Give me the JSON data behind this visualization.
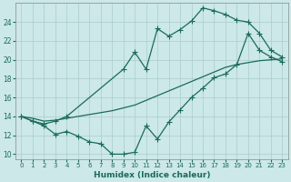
{
  "xlabel": "Humidex (Indice chaleur)",
  "ylabel": "",
  "bg_color": "#cce8e8",
  "grid_color": "#aacccc",
  "line_color": "#1a6b5a",
  "xlim": [
    -0.5,
    23.5
  ],
  "ylim": [
    9.5,
    26.0
  ],
  "yticks": [
    10,
    12,
    14,
    16,
    18,
    20,
    22,
    24
  ],
  "xticks": [
    0,
    1,
    2,
    3,
    4,
    5,
    6,
    7,
    8,
    9,
    10,
    11,
    12,
    13,
    14,
    15,
    16,
    17,
    18,
    19,
    20,
    21,
    22,
    23
  ],
  "line_top_x": [
    0,
    1,
    2,
    3,
    4,
    9,
    10,
    11,
    12,
    13,
    14,
    15,
    16,
    17,
    18,
    19,
    20,
    21,
    22,
    23
  ],
  "line_top_y": [
    14.0,
    13.5,
    13.2,
    13.5,
    14.0,
    19.0,
    20.8,
    19.0,
    23.3,
    22.5,
    23.2,
    24.1,
    25.5,
    25.2,
    24.8,
    24.2,
    24.0,
    22.8,
    21.0,
    20.3
  ],
  "line_mid_x": [
    0,
    1,
    2,
    3,
    4,
    5,
    6,
    7,
    8,
    9,
    10,
    11,
    12,
    13,
    14,
    15,
    16,
    17,
    18,
    19,
    20,
    21,
    22,
    23
  ],
  "line_mid_y": [
    14.0,
    13.8,
    13.5,
    13.6,
    13.8,
    14.0,
    14.2,
    14.4,
    14.6,
    14.9,
    15.2,
    15.7,
    16.2,
    16.7,
    17.2,
    17.7,
    18.2,
    18.7,
    19.2,
    19.5,
    19.7,
    19.9,
    20.0,
    20.1
  ],
  "line_bot_x": [
    0,
    1,
    2,
    3,
    4,
    5,
    6,
    7,
    8,
    9,
    10,
    11,
    12,
    13,
    14,
    15,
    16,
    17,
    18,
    19,
    20,
    21,
    22,
    23
  ],
  "line_bot_y": [
    14.0,
    13.5,
    13.0,
    12.1,
    12.4,
    11.9,
    11.3,
    11.1,
    10.0,
    10.0,
    10.2,
    13.0,
    11.6,
    13.4,
    14.7,
    16.0,
    17.0,
    18.1,
    18.5,
    19.5,
    22.8,
    21.0,
    20.3,
    19.8
  ],
  "marker": "+",
  "markersize": 4.0,
  "linewidth": 0.9
}
